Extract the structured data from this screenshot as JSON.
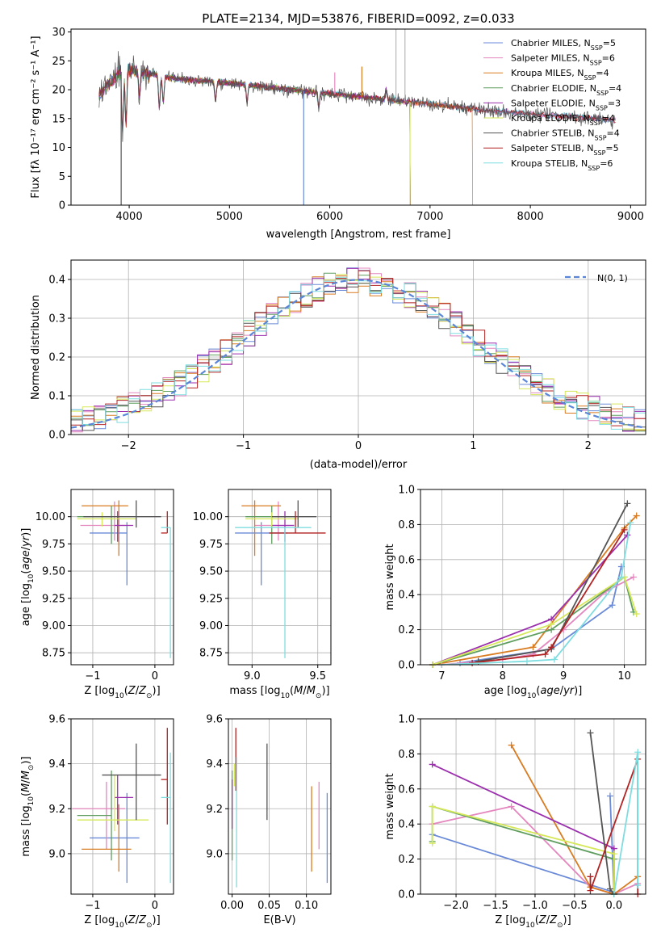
{
  "figure_title": "PLATE=2134, MJD=53876, FIBERID=0092, z=0.033",
  "colors": {
    "Chabrier MILES": "#6a8ad8",
    "Salpeter MILES": "#e487bf",
    "Kroupa MILES": "#d97b20",
    "Chabrier ELODIE": "#5f9e5f",
    "Salpeter ELODIE": "#9b2fae",
    "Kroupa ELODIE": "#d6e85a",
    "Chabrier STELIB": "#545454",
    "Salpeter STELIB": "#b22222",
    "Kroupa STELIB": "#7fdde0",
    "normal": "#5b86d8",
    "grid": "#b0b0b0"
  },
  "chart_data": [
    {
      "id": "spectrum",
      "type": "line",
      "title": "PLATE=2134, MJD=53876, FIBERID=0092, z=0.033",
      "xlabel": "wavelength [Angstrom, rest frame]",
      "ylabel": "Flux [fλ 10⁻¹⁷ erg cm⁻² s⁻¹ A⁻¹]",
      "xlim": [
        3420,
        9150
      ],
      "ylim": [
        0,
        30.5
      ],
      "xticks": [
        4000,
        5000,
        6000,
        7000,
        8000,
        9000
      ],
      "yticks": [
        0,
        5,
        10,
        15,
        20,
        25,
        30
      ],
      "grid": false,
      "legend_position": "top-right",
      "legend": [
        {
          "label": "Chabrier MILES, N",
          "sub": "SSP",
          "suffix": "=5"
        },
        {
          "label": "Salpeter MILES, N",
          "sub": "SSP",
          "suffix": "=6"
        },
        {
          "label": "Kroupa MILES, N",
          "sub": "SSP",
          "suffix": "=4"
        },
        {
          "label": "Chabrier ELODIE, N",
          "sub": "SSP",
          "suffix": "=4"
        },
        {
          "label": "Salpeter ELODIE, N",
          "sub": "SSP",
          "suffix": "=3"
        },
        {
          "label": "Kroupa ELODIE, N",
          "sub": "SSP",
          "suffix": "=4"
        },
        {
          "label": "Chabrier STELIB, N",
          "sub": "SSP",
          "suffix": "=4"
        },
        {
          "label": "Salpeter STELIB, N",
          "sub": "SSP",
          "suffix": "=5"
        },
        {
          "label": "Kroupa STELIB, N",
          "sub": "SSP",
          "suffix": "=6"
        }
      ],
      "continuum": [
        [
          3700,
          19
        ],
        [
          3800,
          21
        ],
        [
          3900,
          23
        ],
        [
          4000,
          23.5
        ],
        [
          4200,
          22.8
        ],
        [
          4500,
          21.8
        ],
        [
          5000,
          21.2
        ],
        [
          5500,
          20.2
        ],
        [
          6000,
          19.3
        ],
        [
          6500,
          18.4
        ],
        [
          7000,
          17.5
        ],
        [
          7500,
          16.5
        ],
        [
          8000,
          15.8
        ],
        [
          8500,
          15.2
        ],
        [
          8850,
          14.8
        ]
      ],
      "cutoffs": {
        "Kroupa MILES": 7420,
        "Kroupa ELODIE": 6800,
        "Salpeter ELODIE": 6800,
        "Chabrier ELODIE": 6800
      }
    },
    {
      "id": "residual-hist",
      "type": "histogram",
      "xlabel": "(data-model)/error",
      "ylabel": "Normed distribution",
      "xlim": [
        -2.5,
        2.5
      ],
      "ylim": [
        0,
        0.45
      ],
      "xticks": [
        -2,
        -1,
        0,
        1,
        2
      ],
      "yticks": [
        0.0,
        0.1,
        0.2,
        0.3,
        0.4
      ],
      "grid": true,
      "legend_position": "top-right",
      "legend": [
        {
          "label": "N(0, 1)"
        }
      ],
      "bin_width": 0.1
    },
    {
      "id": "age-vs-Z",
      "type": "errorbar",
      "xlabel": "Z [log10(Z/Z⊙)]",
      "ylabel": "age [log10(age/yr)]",
      "xlim": [
        -1.35,
        0.3
      ],
      "ylim": [
        8.64,
        10.25
      ],
      "xticks": [
        -1,
        0
      ],
      "yticks": [
        8.75,
        9.0,
        9.25,
        9.5,
        9.75,
        10.0
      ],
      "grid": true,
      "points": [
        {
          "model": "Chabrier MILES",
          "x": -0.45,
          "xerr": [
            0.6,
            0.0
          ],
          "y": 9.85,
          "yerr": [
            0.48,
            0.1
          ]
        },
        {
          "model": "Salpeter MILES",
          "x": -0.65,
          "xerr": [
            0.55,
            0.18
          ],
          "y": 9.92,
          "yerr": [
            0.14,
            0.22
          ]
        },
        {
          "model": "Kroupa MILES",
          "x": -0.58,
          "xerr": [
            0.6,
            0.15
          ],
          "y": 10.1,
          "yerr": [
            0.46,
            0.05
          ]
        },
        {
          "model": "Chabrier ELODIE",
          "x": -0.7,
          "xerr": [
            0.55,
            0.0
          ],
          "y": 10.0,
          "yerr": [
            0.25,
            0.1
          ]
        },
        {
          "model": "Salpeter ELODIE",
          "x": -0.6,
          "xerr": [
            0.05,
            0.25
          ],
          "y": 9.92,
          "yerr": [
            0.15,
            0.13
          ]
        },
        {
          "model": "Kroupa ELODIE",
          "x": -0.85,
          "xerr": [
            0.4,
            0.55
          ],
          "y": 9.98,
          "yerr": [
            0.07,
            0.06
          ]
        },
        {
          "model": "Chabrier STELIB",
          "x": -0.3,
          "xerr": [
            0.85,
            0.4
          ],
          "y": 10.0,
          "yerr": [
            0.1,
            0.15
          ]
        },
        {
          "model": "Salpeter STELIB",
          "x": 0.2,
          "xerr": [
            0.1,
            0.0
          ],
          "y": 9.85,
          "yerr": [
            0.0,
            0.2
          ]
        },
        {
          "model": "Kroupa STELIB",
          "x": 0.25,
          "xerr": [
            0.15,
            0.0
          ],
          "y": 9.9,
          "yerr": [
            1.2,
            0.0
          ]
        }
      ]
    },
    {
      "id": "age-vs-mass",
      "type": "errorbar",
      "xlabel": "mass [log10(M/M⊙)]",
      "ylabel": "",
      "xlim": [
        8.82,
        9.6
      ],
      "ylim": [
        8.64,
        10.25
      ],
      "xticks": [
        9.0,
        9.5
      ],
      "yticks": [
        8.75,
        9.0,
        9.25,
        9.5,
        9.75,
        10.0
      ],
      "grid": true,
      "points": [
        {
          "model": "Chabrier MILES",
          "x": 9.07,
          "xerr": [
            0.2,
            0.2
          ],
          "y": 9.85,
          "yerr": [
            0.48,
            0.1
          ]
        },
        {
          "model": "Salpeter MILES",
          "x": 9.2,
          "xerr": [
            0.18,
            0.12
          ],
          "y": 9.92,
          "yerr": [
            0.14,
            0.22
          ]
        },
        {
          "model": "Kroupa MILES",
          "x": 9.02,
          "xerr": [
            0.1,
            0.2
          ],
          "y": 10.1,
          "yerr": [
            0.46,
            0.05
          ]
        },
        {
          "model": "Chabrier ELODIE",
          "x": 9.15,
          "xerr": [
            0.2,
            0.2
          ],
          "y": 10.0,
          "yerr": [
            0.25,
            0.1
          ]
        },
        {
          "model": "Salpeter ELODIE",
          "x": 9.25,
          "xerr": [
            0.1,
            0.07
          ],
          "y": 9.92,
          "yerr": [
            0.15,
            0.13
          ]
        },
        {
          "model": "Kroupa ELODIE",
          "x": 9.15,
          "xerr": [
            0.2,
            0.2
          ],
          "y": 9.98,
          "yerr": [
            0.07,
            0.06
          ]
        },
        {
          "model": "Chabrier STELIB",
          "x": 9.35,
          "xerr": [
            0.2,
            0.14
          ],
          "y": 10.0,
          "yerr": [
            0.1,
            0.15
          ]
        },
        {
          "model": "Salpeter STELIB",
          "x": 9.33,
          "xerr": [
            0.2,
            0.23
          ],
          "y": 9.85,
          "yerr": [
            0.0,
            0.2
          ]
        },
        {
          "model": "Kroupa STELIB",
          "x": 9.25,
          "xerr": [
            0.38,
            0.2
          ],
          "y": 9.9,
          "yerr": [
            1.2,
            0.0
          ]
        }
      ]
    },
    {
      "id": "massweight-vs-age",
      "type": "line",
      "xlabel": "age [log10(age/yr)]",
      "ylabel": "mass weight",
      "xlim": [
        6.65,
        10.35
      ],
      "ylim": [
        0,
        1.0
      ],
      "xticks": [
        7,
        8,
        9,
        10
      ],
      "yticks": [
        0.0,
        0.2,
        0.4,
        0.6,
        0.8,
        1.0
      ],
      "grid": true,
      "series": [
        {
          "model": "Chabrier MILES",
          "x": [
            7.3,
            8.8,
            9.8,
            9.95
          ],
          "y": [
            0.01,
            0.09,
            0.34,
            0.56
          ]
        },
        {
          "model": "Salpeter MILES",
          "x": [
            7.0,
            8.0,
            8.5,
            9.0,
            9.7,
            10.15
          ],
          "y": [
            0.0,
            0.03,
            0.06,
            0.2,
            0.42,
            0.5
          ]
        },
        {
          "model": "Kroupa MILES",
          "x": [
            6.85,
            8.5,
            10.0,
            10.2
          ],
          "y": [
            0.0,
            0.1,
            0.78,
            0.85
          ]
        },
        {
          "model": "Chabrier ELODIE",
          "x": [
            6.85,
            8.8,
            10.0,
            10.15
          ],
          "y": [
            0.0,
            0.2,
            0.5,
            0.3
          ]
        },
        {
          "model": "Salpeter ELODIE",
          "x": [
            6.85,
            8.8,
            10.05
          ],
          "y": [
            0.0,
            0.26,
            0.74
          ]
        },
        {
          "model": "Kroupa ELODIE",
          "x": [
            6.85,
            8.8,
            10.0,
            10.2
          ],
          "y": [
            0.0,
            0.23,
            0.5,
            0.29
          ]
        },
        {
          "model": "Chabrier STELIB",
          "x": [
            7.6,
            8.8,
            10.05
          ],
          "y": [
            0.02,
            0.09,
            0.92
          ]
        },
        {
          "model": "Salpeter STELIB",
          "x": [
            7.5,
            8.7,
            8.8,
            10.0
          ],
          "y": [
            0.01,
            0.06,
            0.1,
            0.77
          ]
        },
        {
          "model": "Kroupa STELIB",
          "x": [
            7.0,
            8.4,
            8.85,
            9.95,
            10.1
          ],
          "y": [
            0.0,
            0.02,
            0.03,
            0.5,
            0.81
          ]
        }
      ]
    },
    {
      "id": "mass-vs-Z",
      "type": "errorbar",
      "xlabel": "Z [log10(Z/Z⊙)]",
      "ylabel": "mass [log10(M/M⊙)]",
      "xlim": [
        -1.35,
        0.3
      ],
      "ylim": [
        8.82,
        9.6
      ],
      "xticks": [
        -1,
        0
      ],
      "yticks": [
        9.0,
        9.2,
        9.4,
        9.6
      ],
      "grid": true,
      "points": [
        {
          "model": "Chabrier MILES",
          "x": -0.45,
          "xerr": [
            0.6,
            0.2
          ],
          "y": 9.07,
          "yerr": [
            0.2,
            0.2
          ]
        },
        {
          "model": "Salpeter MILES",
          "x": -0.78,
          "xerr": [
            0.55,
            0.3
          ],
          "y": 9.2,
          "yerr": [
            0.18,
            0.12
          ]
        },
        {
          "model": "Kroupa MILES",
          "x": -0.58,
          "xerr": [
            0.6,
            0.2
          ],
          "y": 9.02,
          "yerr": [
            0.1,
            0.2
          ]
        },
        {
          "model": "Chabrier ELODIE",
          "x": -0.7,
          "xerr": [
            0.55,
            0.0
          ],
          "y": 9.17,
          "yerr": [
            0.2,
            0.2
          ]
        },
        {
          "model": "Salpeter ELODIE",
          "x": -0.6,
          "xerr": [
            0.05,
            0.25
          ],
          "y": 9.25,
          "yerr": [
            0.12,
            0.1
          ]
        },
        {
          "model": "Kroupa ELODIE",
          "x": -0.65,
          "xerr": [
            0.6,
            0.55
          ],
          "y": 9.15,
          "yerr": [
            0.05,
            0.2
          ]
        },
        {
          "model": "Chabrier STELIB",
          "x": -0.3,
          "xerr": [
            0.55,
            0.4
          ],
          "y": 9.35,
          "yerr": [
            0.2,
            0.14
          ]
        },
        {
          "model": "Salpeter STELIB",
          "x": 0.2,
          "xerr": [
            0.1,
            0.0
          ],
          "y": 9.33,
          "yerr": [
            0.2,
            0.23
          ]
        },
        {
          "model": "Kroupa STELIB",
          "x": 0.25,
          "xerr": [
            0.15,
            0.0
          ],
          "y": 9.25,
          "yerr": [
            0.38,
            0.2
          ]
        }
      ]
    },
    {
      "id": "mass-vs-ebv",
      "type": "errorbar",
      "xlabel": "E(B-V)",
      "ylabel": "",
      "xlim": [
        -0.005,
        0.133
      ],
      "ylim": [
        8.82,
        9.6
      ],
      "xticks": [
        0.0,
        0.05,
        0.1
      ],
      "yticks": [
        9.0,
        9.2,
        9.4,
        9.6
      ],
      "grid": true,
      "points": [
        {
          "model": "Chabrier MILES",
          "x": 0.128,
          "xerr": [
            0,
            0
          ],
          "y": 9.07,
          "yerr": [
            0.2,
            0.2
          ]
        },
        {
          "model": "Salpeter MILES",
          "x": 0.117,
          "xerr": [
            0,
            0
          ],
          "y": 9.2,
          "yerr": [
            0.18,
            0.12
          ]
        },
        {
          "model": "Kroupa MILES",
          "x": 0.107,
          "xerr": [
            0,
            0
          ],
          "y": 9.1,
          "yerr": [
            0.18,
            0.2
          ]
        },
        {
          "model": "Chabrier ELODIE",
          "x": 0.0,
          "xerr": [
            0,
            0
          ],
          "y": 9.17,
          "yerr": [
            0.2,
            0.2
          ]
        },
        {
          "model": "Salpeter ELODIE",
          "x": 0.0,
          "xerr": [
            0,
            0
          ],
          "y": 9.23,
          "yerr": [
            0.12,
            0.1
          ]
        },
        {
          "model": "Kroupa ELODIE",
          "x": 0.003,
          "xerr": [
            0,
            0
          ],
          "y": 9.35,
          "yerr": [
            0.05,
            0.05
          ]
        },
        {
          "model": "Chabrier STELIB",
          "x": 0.047,
          "xerr": [
            0,
            0
          ],
          "y": 9.35,
          "yerr": [
            0.2,
            0.14
          ]
        },
        {
          "model": "Salpeter STELIB",
          "x": 0.005,
          "xerr": [
            0,
            0
          ],
          "y": 9.33,
          "yerr": [
            0.05,
            0.23
          ]
        },
        {
          "model": "Kroupa STELIB",
          "x": 0.006,
          "xerr": [
            0,
            0
          ],
          "y": 9.25,
          "yerr": [
            0.4,
            0.18
          ]
        }
      ]
    },
    {
      "id": "massweight-vs-Z",
      "type": "line",
      "xlabel": "Z [log10(Z/Z⊙)]",
      "ylabel": "mass weight",
      "xlim": [
        -2.45,
        0.4
      ],
      "ylim": [
        0,
        1.0
      ],
      "xticks": [
        -2.0,
        -1.5,
        -1.0,
        -0.5,
        0.0
      ],
      "yticks": [
        0.0,
        0.2,
        0.4,
        0.6,
        0.8,
        1.0
      ],
      "grid": true,
      "series": [
        {
          "model": "Chabrier MILES",
          "x": [
            -2.3,
            0.0,
            -0.05
          ],
          "y": [
            0.34,
            0.01,
            0.56
          ]
        },
        {
          "model": "Salpeter MILES",
          "x": [
            -2.3,
            -1.3,
            -0.3,
            0.0,
            0.3
          ],
          "y": [
            0.4,
            0.5,
            0.04,
            0.0,
            0.06
          ]
        },
        {
          "model": "Kroupa MILES",
          "x": [
            -1.3,
            -0.3,
            0.0,
            0.3
          ],
          "y": [
            0.85,
            0.04,
            0.0,
            0.1
          ]
        },
        {
          "model": "Chabrier ELODIE",
          "x": [
            -2.3,
            -2.3,
            0.0,
            0.0
          ],
          "y": [
            0.3,
            0.5,
            0.2,
            0.0
          ]
        },
        {
          "model": "Salpeter ELODIE",
          "x": [
            -2.3,
            0.0,
            0.0
          ],
          "y": [
            0.74,
            0.26,
            0.0
          ]
        },
        {
          "model": "Kroupa ELODIE",
          "x": [
            -2.3,
            -2.3,
            0.0,
            0.0
          ],
          "y": [
            0.29,
            0.5,
            0.23,
            0.0
          ]
        },
        {
          "model": "Chabrier STELIB",
          "x": [
            -0.3,
            -0.05,
            0.0
          ],
          "y": [
            0.92,
            0.03,
            0.0
          ]
        },
        {
          "model": "Salpeter STELIB",
          "x": [
            -0.3,
            -0.3,
            0.3,
            0.3
          ],
          "y": [
            0.1,
            0.02,
            0.77,
            0.0
          ]
        },
        {
          "model": "Kroupa STELIB",
          "x": [
            0.0,
            0.3,
            0.3
          ],
          "y": [
            0.0,
            0.81,
            0.05
          ]
        }
      ]
    }
  ]
}
